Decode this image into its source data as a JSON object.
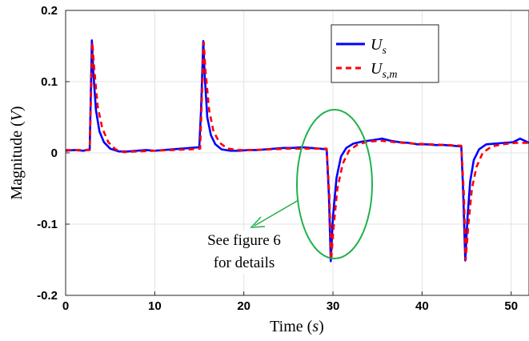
{
  "chart_data": {
    "type": "line",
    "xlabel": "Time (s)",
    "ylabel": "Magnitude (V)",
    "xlim": [
      0,
      52
    ],
    "ylim": [
      -0.2,
      0.2
    ],
    "x_ticks": [
      0,
      10,
      20,
      30,
      40,
      50
    ],
    "y_ticks": [
      -0.2,
      -0.1,
      0,
      0.1,
      0.2
    ],
    "x_tick_labels": [
      "0",
      "10",
      "20",
      "30",
      "40",
      "50"
    ],
    "y_tick_labels": [
      "-0.2",
      "-0.1",
      "0",
      "0.1",
      "0.2"
    ],
    "grid": true,
    "legend_position": "top-right",
    "series": [
      {
        "name": "U_s",
        "color": "#0000ff",
        "style": "solid",
        "x": [
          0,
          1,
          2,
          2.7,
          2.95,
          3.1,
          3.4,
          3.8,
          4.3,
          5,
          6,
          7,
          8,
          9,
          10,
          11,
          12,
          13,
          14,
          15,
          15.2,
          15.45,
          15.6,
          15.9,
          16.3,
          16.8,
          17.5,
          18.5,
          19.5,
          20.5,
          21.5,
          22.5,
          23.5,
          24.5,
          25.5,
          26.5,
          27.5,
          28.5,
          29.3,
          29.55,
          29.75,
          30.0,
          30.4,
          30.9,
          31.5,
          32.3,
          33.3,
          34.5,
          35.5,
          36.5,
          37.5,
          38.5,
          39.5,
          40.5,
          41.5,
          42.5,
          43.5,
          44.4,
          44.6,
          44.85,
          45.1,
          45.4,
          45.8,
          46.4,
          47.2,
          48.2,
          49.2,
          50.2,
          51,
          52
        ],
        "y": [
          0.003,
          0.004,
          0.003,
          0.005,
          0.158,
          0.115,
          0.06,
          0.03,
          0.015,
          0.006,
          0.002,
          0.002,
          0.003,
          0.004,
          0.003,
          0.004,
          0.005,
          0.006,
          0.007,
          0.008,
          0.06,
          0.157,
          0.11,
          0.05,
          0.025,
          0.012,
          0.005,
          0.003,
          0.003,
          0.004,
          0.004,
          0.005,
          0.006,
          0.007,
          0.007,
          0.008,
          0.007,
          0.006,
          0.005,
          -0.06,
          -0.152,
          -0.09,
          -0.035,
          -0.005,
          0.007,
          0.013,
          0.016,
          0.018,
          0.02,
          0.017,
          0.015,
          0.014,
          0.012,
          0.012,
          0.011,
          0.011,
          0.01,
          0.009,
          -0.05,
          -0.151,
          -0.09,
          -0.04,
          -0.01,
          0.005,
          0.012,
          0.013,
          0.014,
          0.015,
          0.02,
          0.014
        ]
      },
      {
        "name": "U_s,m",
        "color": "#ff0000",
        "style": "dashed",
        "x": [
          0,
          2.7,
          3.0,
          3.2,
          3.6,
          4.1,
          4.8,
          5.6,
          6.5,
          8,
          10,
          12,
          14,
          15.1,
          15.5,
          15.7,
          16.1,
          16.6,
          17.3,
          18.2,
          19.5,
          21,
          23,
          25,
          27,
          29.3,
          29.6,
          29.8,
          30.1,
          30.5,
          31.1,
          31.8,
          32.8,
          34,
          35.5,
          37,
          39,
          41,
          43,
          44.4,
          44.7,
          44.9,
          45.2,
          45.6,
          46.1,
          46.8,
          47.8,
          49,
          50.5,
          52
        ],
        "y": [
          0.004,
          0.004,
          0.155,
          0.12,
          0.065,
          0.035,
          0.015,
          0.005,
          0.001,
          0.002,
          0.003,
          0.004,
          0.005,
          0.006,
          0.155,
          0.115,
          0.06,
          0.03,
          0.014,
          0.006,
          0.004,
          0.004,
          0.005,
          0.006,
          0.006,
          0.006,
          -0.06,
          -0.15,
          -0.1,
          -0.05,
          -0.015,
          0.003,
          0.012,
          0.016,
          0.017,
          0.015,
          0.013,
          0.012,
          0.011,
          0.01,
          -0.06,
          -0.15,
          -0.1,
          -0.05,
          -0.02,
          0.0,
          0.009,
          0.012,
          0.014,
          0.014
        ]
      }
    ],
    "legend": [
      {
        "series": "U_s",
        "label_main": "U",
        "label_sub": "s"
      },
      {
        "series": "U_s,m",
        "label_main": "U",
        "label_sub": "s,m"
      }
    ],
    "annotation": {
      "lines": [
        "See figure 6",
        "for details"
      ],
      "ellipse_center": [
        30,
        -0.045
      ],
      "color": "#22b14c"
    }
  }
}
